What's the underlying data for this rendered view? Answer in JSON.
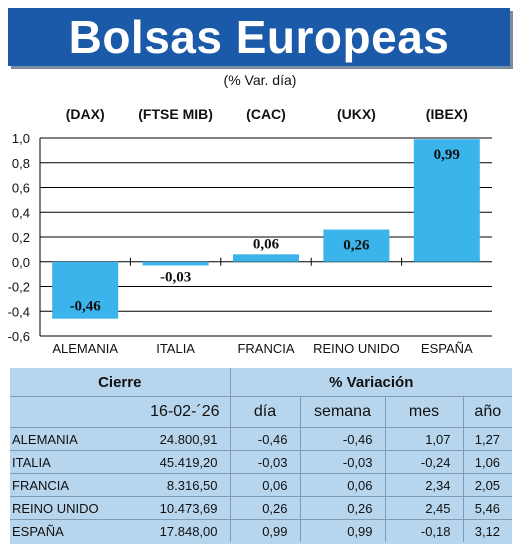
{
  "header": {
    "title": "Bolsas Europeas",
    "subtitle": "(% Var. día)"
  },
  "colors": {
    "title_band": "#1a5aa8",
    "bar": "#3ab4ea",
    "table_bg": "#b7d6ee"
  },
  "chart_data": {
    "type": "bar",
    "indices": [
      "(DAX)",
      "(FTSE MIB)",
      "(CAC)",
      "(UKX)",
      "(IBEX)"
    ],
    "categories": [
      "ALEMANIA",
      "ITALIA",
      "FRANCIA",
      "REINO UNIDO",
      "ESPAÑA"
    ],
    "values": [
      -0.46,
      -0.03,
      0.06,
      0.26,
      0.99
    ],
    "value_labels": [
      "-0,46",
      "-0,03",
      "0,06",
      "0,26",
      "0,99"
    ],
    "ylim": [
      -0.6,
      1.0
    ],
    "yticks": [
      1.0,
      0.8,
      0.6,
      0.4,
      0.2,
      0.0,
      -0.2,
      -0.4,
      -0.6
    ],
    "ytick_labels": [
      "1,0",
      "0,8",
      "0,6",
      "0,4",
      "0,2",
      "0,0",
      "-0,2",
      "-0,4",
      "-0,6"
    ],
    "grid": true
  },
  "table": {
    "group_headers": {
      "cierre": "Cierre",
      "variacion": "% Variación"
    },
    "col_headers": {
      "date": "16-02-´26",
      "dia": "día",
      "semana": "semana",
      "mes": "mes",
      "ano": "año"
    },
    "rows": [
      {
        "name": "ALEMANIA",
        "cierre": "24.800,91",
        "dia": "-0,46",
        "semana": "-0,46",
        "mes": "1,07",
        "ano": "1,27"
      },
      {
        "name": "ITALIA",
        "cierre": "45.419,20",
        "dia": "-0,03",
        "semana": "-0,03",
        "mes": "-0,24",
        "ano": "1,06"
      },
      {
        "name": "FRANCIA",
        "cierre": "8.316,50",
        "dia": "0,06",
        "semana": "0,06",
        "mes": "2,34",
        "ano": "2,05"
      },
      {
        "name": "REINO UNIDO",
        "cierre": "10.473,69",
        "dia": "0,26",
        "semana": "0,26",
        "mes": "2,45",
        "ano": "5,46"
      },
      {
        "name": "ESPAÑA",
        "cierre": "17.848,00",
        "dia": "0,99",
        "semana": "0,99",
        "mes": "-0,18",
        "ano": "3,12"
      }
    ]
  }
}
